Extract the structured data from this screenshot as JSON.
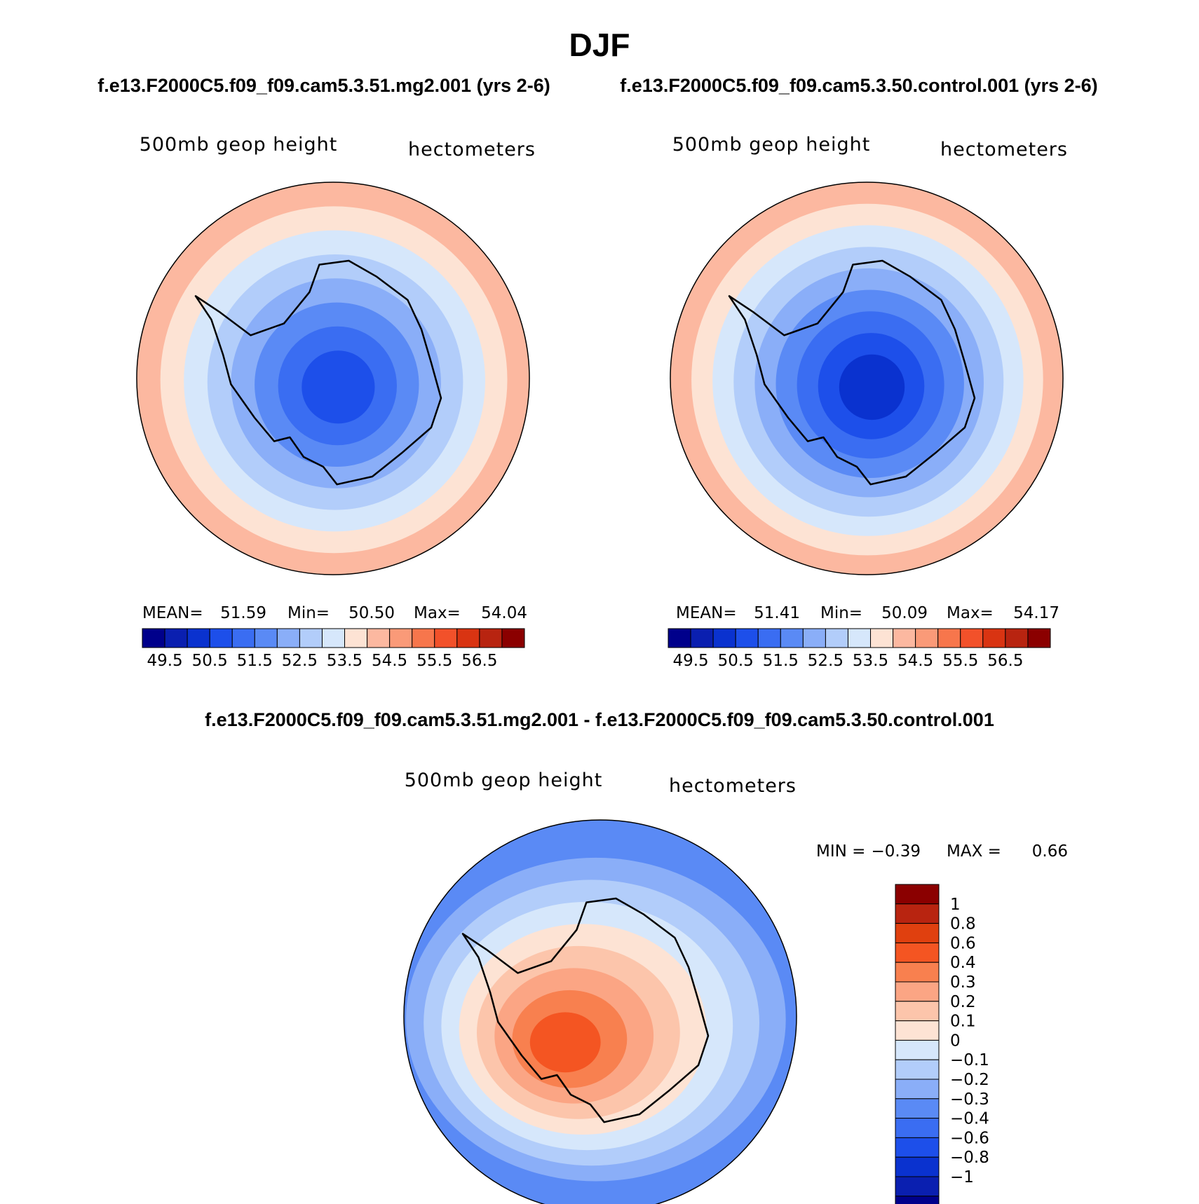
{
  "chart_data": {
    "season": "DJF",
    "panel_titles": [
      "f.e13.F2000C5.f09_f09.cam5.3.51.mg2.001 (yrs 2-6)",
      "f.e13.F2000C5.f09_f09.cam5.3.50.control.001 (yrs 2-6)"
    ],
    "diff_title": "f.e13.F2000C5.f09_f09.cam5.3.51.mg2.001 - f.e13.F2000C5.f09_f09.cam5.3.50.control.001",
    "panels": [
      {
        "type": "heatmap",
        "variable": "500mb geop height",
        "units": "hectometers",
        "stats": {
          "mean_label": "MEAN=",
          "mean": "51.59",
          "min_label": "Min=",
          "min": "50.50",
          "max_label": "Max=",
          "max": "54.04"
        },
        "contours": [
          {
            "level": 54.0,
            "color": "#fcb8a0"
          },
          {
            "level": 53.5,
            "color": "#fde3d4"
          },
          {
            "level": 53.0,
            "color": "#d6e7fb"
          },
          {
            "level": 52.5,
            "color": "#b2cdfa"
          },
          {
            "level": 52.0,
            "color": "#8aaef8"
          },
          {
            "level": 51.5,
            "color": "#5a8af5"
          },
          {
            "level": 51.0,
            "color": "#3a6df2"
          },
          {
            "level": 50.5,
            "color": "#1d4fea"
          }
        ]
      },
      {
        "type": "heatmap",
        "variable": "500mb geop height",
        "units": "hectometers",
        "stats": {
          "mean_label": "MEAN=",
          "mean": "51.41",
          "min_label": "Min=",
          "min": "50.09",
          "max_label": "Max=",
          "max": "54.17"
        },
        "contours": [
          {
            "level": 54.0,
            "color": "#fcb8a0"
          },
          {
            "level": 53.5,
            "color": "#fde3d4"
          },
          {
            "level": 53.0,
            "color": "#d6e7fb"
          },
          {
            "level": 52.5,
            "color": "#b2cdfa"
          },
          {
            "level": 52.0,
            "color": "#8aaef8"
          },
          {
            "level": 51.5,
            "color": "#5a8af5"
          },
          {
            "level": 51.0,
            "color": "#3a6df2"
          },
          {
            "level": 50.5,
            "color": "#1d4fea"
          },
          {
            "level": 50.0,
            "color": "#0a32cf"
          }
        ]
      }
    ],
    "colorbar": {
      "colors": [
        "#00008b",
        "#0a1fb0",
        "#0a32cf",
        "#1d4fea",
        "#3a6df2",
        "#5a8af5",
        "#8aaef8",
        "#b2cdfa",
        "#d6e7fb",
        "#fde3d4",
        "#fcb8a0",
        "#fa9a78",
        "#f7764c",
        "#f2512a",
        "#d93412",
        "#b82410",
        "#8b0000"
      ],
      "tick_labels": [
        "49.5",
        "50.5",
        "51.5",
        "52.5",
        "53.5",
        "54.5",
        "55.5",
        "56.5"
      ]
    },
    "diff_panel": {
      "type": "heatmap",
      "variable": "500mb geop height",
      "units": "hectometers",
      "min_label": "MIN =",
      "min": "−0.39",
      "max_label": "MAX =",
      "max": "0.66",
      "contours": [
        {
          "level": -0.3,
          "color": "#5a8af5"
        },
        {
          "level": -0.2,
          "color": "#8aaef8"
        },
        {
          "level": -0.1,
          "color": "#b2cdfa"
        },
        {
          "level": 0.0,
          "color": "#d6e7fb"
        },
        {
          "level": 0.1,
          "color": "#fde3d4"
        },
        {
          "level": 0.2,
          "color": "#fcc5ab"
        },
        {
          "level": 0.3,
          "color": "#fba584"
        },
        {
          "level": 0.4,
          "color": "#f8804f"
        },
        {
          "level": 0.6,
          "color": "#f45522"
        }
      ],
      "colorbar_colors": [
        "#8b0000",
        "#b82410",
        "#e0400f",
        "#f45522",
        "#f8804f",
        "#fba584",
        "#fcc5ab",
        "#fde3d4",
        "#d6e7fb",
        "#b2cdfa",
        "#8aaef8",
        "#5a8af5",
        "#3a6df2",
        "#1d4fea",
        "#0a32cf",
        "#0a1fb0",
        "#00008b"
      ],
      "colorbar_labels": [
        "1",
        "0.8",
        "0.6",
        "0.4",
        "0.3",
        "0.2",
        "0.1",
        "0",
        "−0.1",
        "−0.2",
        "−0.3",
        "−0.4",
        "−0.6",
        "−0.8",
        "−1"
      ]
    }
  }
}
